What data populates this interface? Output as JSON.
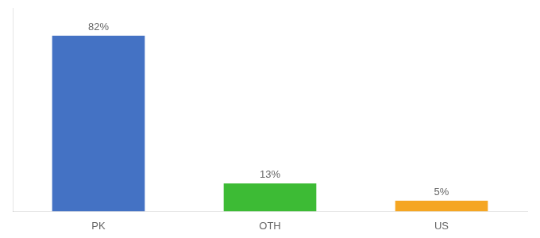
{
  "chart_data": {
    "type": "bar",
    "categories": [
      "PK",
      "OTH",
      "US"
    ],
    "values": [
      82,
      13,
      5
    ],
    "value_labels": [
      "82%",
      "13%",
      "5%"
    ],
    "colors": [
      "#4472c4",
      "#3dbb35",
      "#f5a623"
    ],
    "ylim": [
      0,
      95
    ],
    "grid": false,
    "data_labels": true,
    "tick_labels": "x"
  }
}
